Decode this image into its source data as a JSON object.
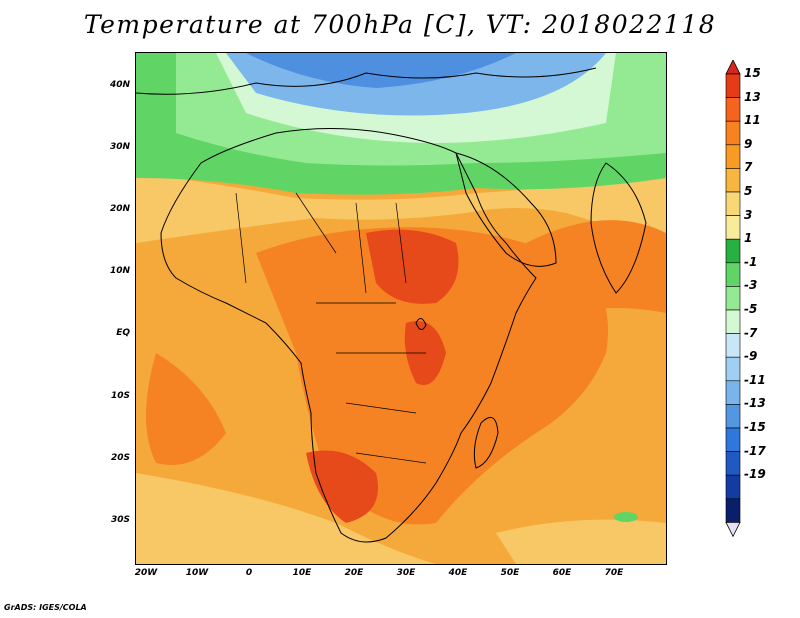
{
  "title": "Temperature at 700hPa [C], VT: 2018022118",
  "credit": "GrADS: IGES/COLA",
  "lat_labels": [
    "40N",
    "30N",
    "20N",
    "10N",
    "EQ",
    "10S",
    "20S",
    "30S"
  ],
  "lon_labels": [
    "20W",
    "10W",
    "0",
    "10E",
    "20E",
    "30E",
    "40E",
    "50E",
    "60E",
    "70E"
  ],
  "colorbar": {
    "labels": [
      "15",
      "13",
      "11",
      "9",
      "7",
      "5",
      "3",
      "1",
      "-1",
      "-3",
      "-5",
      "-7",
      "-9",
      "-11",
      "-13",
      "-15",
      "-17",
      "-19"
    ],
    "colors": [
      "#e53b16",
      "#f5631e",
      "#f8821f",
      "#f89b22",
      "#f7b640",
      "#f8d775",
      "#f8ec9c",
      "#27b141",
      "#60d565",
      "#93ea93",
      "#d3f8d3",
      "#c8e6f8",
      "#9fd0f2",
      "#79b5ea",
      "#5396e2",
      "#2f77da",
      "#1f59c2",
      "#133ca3",
      "#0b1e6b",
      "#d6d6f5"
    ],
    "top_arrow_color": "#d7261b",
    "bottom_arrow_color": "#e4e0f7"
  },
  "map": {
    "region": "Africa and surrounding seas",
    "lon_range": [
      -22,
      80
    ],
    "lat_range": [
      -37,
      45
    ],
    "colors": {
      "ocean_warm": "#f5a93a",
      "hot": "#f58323",
      "hottest": "#e6491a",
      "mild": "#f8c766",
      "cool_green": "#60d565",
      "light_green": "#93ea93",
      "pale": "#d3f8d3",
      "cold_blue": "#7db6ea",
      "colder_blue": "#4f8fe0"
    }
  }
}
